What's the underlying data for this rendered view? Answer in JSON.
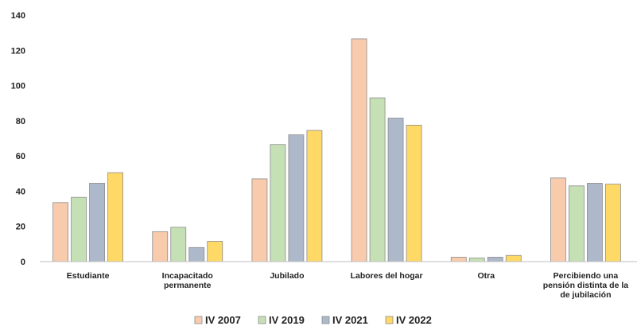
{
  "chart_data": {
    "type": "bar",
    "categories": [
      [
        "Estudiante"
      ],
      [
        "Incapacitado",
        "permanente"
      ],
      [
        "Jubilado"
      ],
      [
        "Labores del hogar"
      ],
      [
        "Otra"
      ],
      [
        "Percibiendo una",
        "pensión distinta de la",
        "de jubilación"
      ]
    ],
    "series": [
      {
        "name": "IV 2007",
        "color": "#f8cbad",
        "values": [
          33.5,
          17,
          47,
          126.5,
          2.5,
          47.5
        ]
      },
      {
        "name": "IV 2019",
        "color": "#c5e0b4",
        "values": [
          36.5,
          19.5,
          66.5,
          93,
          2,
          43
        ]
      },
      {
        "name": "IV 2021",
        "color": "#adb9ca",
        "values": [
          44.5,
          8,
          72,
          81.5,
          2.5,
          44.5
        ]
      },
      {
        "name": "IV 2022",
        "color": "#ffd966",
        "values": [
          50.5,
          11.5,
          74.5,
          77.5,
          3.5,
          44
        ]
      }
    ],
    "ylim": [
      0,
      140
    ],
    "yticks": [
      0,
      20,
      40,
      60,
      80,
      100,
      120,
      140
    ],
    "title": "",
    "xlabel": "",
    "ylabel": "",
    "grid": false,
    "legend_position": "bottom"
  }
}
